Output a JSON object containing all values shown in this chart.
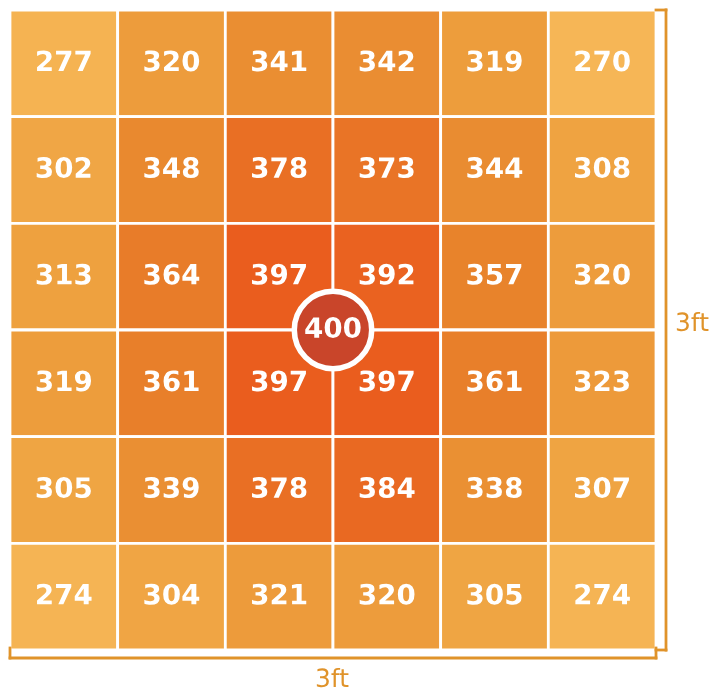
{
  "chart_data": {
    "type": "heatmap",
    "categories": [
      null,
      null,
      null,
      null,
      null,
      null
    ],
    "y_categories": [
      null,
      null,
      null,
      null,
      null,
      null
    ],
    "cells": [
      [
        277,
        320,
        341,
        342,
        319,
        270
      ],
      [
        302,
        348,
        378,
        373,
        344,
        308
      ],
      [
        313,
        364,
        397,
        392,
        357,
        320
      ],
      [
        319,
        361,
        397,
        397,
        361,
        323
      ],
      [
        305,
        339,
        378,
        384,
        338,
        307
      ],
      [
        274,
        304,
        321,
        320,
        305,
        274
      ]
    ],
    "data_labels": true,
    "annotations": [
      "400",
      "3ft",
      "3ft"
    ]
  }
}
